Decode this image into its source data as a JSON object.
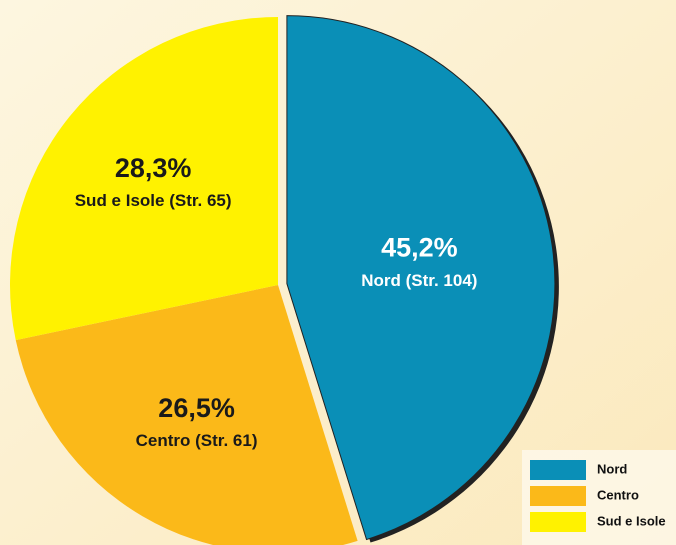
{
  "chart_data": {
    "type": "pie",
    "categories": [
      "Nord",
      "Centro",
      "Sud e Isole"
    ],
    "values": [
      45.2,
      26.5,
      28.3
    ],
    "value_labels": [
      "45,2%",
      "26,5%",
      "28,3%"
    ],
    "slice_labels": [
      "Nord (Str. 104)",
      "Centro (Str. 61)",
      "Sud e Isole (Str. 65)"
    ],
    "colors": [
      "#0a8fb7",
      "#fbb919",
      "#fff200"
    ],
    "legend": "bottom-right"
  }
}
